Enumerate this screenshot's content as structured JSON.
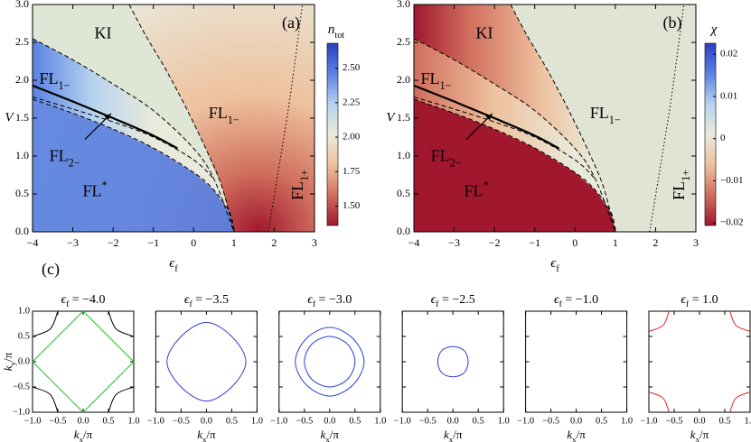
{
  "chart_data": [
    {
      "type": "heatmap",
      "panel_label": "(a)",
      "xlabel": {
        "main": "ϵ",
        "sub": "f"
      },
      "ylabel": "V",
      "xlim": [
        -4,
        3
      ],
      "ylim": [
        0,
        3
      ],
      "xticks": [
        {
          "value": -4,
          "label": "−4"
        },
        {
          "value": -3,
          "label": "−3"
        },
        {
          "value": -2,
          "label": "−2"
        },
        {
          "value": -1,
          "label": "−1"
        },
        0,
        1,
        2,
        3
      ],
      "yticks": [
        {
          "value": 0,
          "label": "0.0"
        },
        0.5,
        {
          "value": 1,
          "label": "1.0"
        },
        1.5,
        {
          "value": 2,
          "label": "2.0"
        },
        2.5,
        {
          "value": 3,
          "label": "3.0"
        }
      ],
      "colorbar": {
        "label": {
          "main": "n",
          "sub": "tot"
        },
        "lim": [
          1.36,
          2.68
        ],
        "ticks": [
          {
            "value": 2.5,
            "label": "2.50"
          },
          2.25,
          {
            "value": 2,
            "label": "2.00"
          },
          1.75,
          {
            "value": 1.5,
            "label": "1.50"
          }
        ],
        "colors": [
          "#a1172e",
          "#d06e5d",
          "#eec19e",
          "#e9eadb",
          "#b7d3ef",
          "#5a82e3",
          "#2c3fc4"
        ]
      },
      "regions": [
        {
          "main": "KI"
        },
        {
          "main": "FL",
          "sub": "1−"
        },
        {
          "main": "FL",
          "sub": "2−"
        },
        {
          "main": "FL",
          "sup": "*"
        },
        {
          "main": "FL",
          "sub": "1−"
        },
        {
          "main": "FL",
          "sub": "1+"
        }
      ],
      "lines": [
        {
          "style": "dashed",
          "x": [
            -4,
            -3,
            -2,
            -1,
            0,
            0.5,
            0.9,
            1
          ],
          "values": [
            1.75,
            1.565,
            1.356,
            1.107,
            0.783,
            0.553,
            0.247,
            0
          ]
        },
        {
          "style": "solid",
          "x": [
            -4,
            -3,
            -2,
            -1,
            -0.4
          ],
          "values": [
            1.93,
            1.72,
            1.5,
            1.27,
            1.1
          ]
        },
        {
          "style": "dashed",
          "x": [
            -4,
            -3,
            -2,
            -1,
            0,
            0.5
          ],
          "values": [
            1.78,
            1.62,
            1.45,
            1.25,
            0.95,
            0.7
          ]
        },
        {
          "style": "dashed",
          "x": [
            -4,
            -3,
            -2,
            -1,
            0,
            0.5,
            1
          ],
          "values": [
            2.55,
            2.27,
            1.95,
            1.6,
            1.1,
            0.7,
            0
          ]
        },
        {
          "style": "dashed",
          "x": [
            -1.6,
            -1.2,
            -0.7,
            -0.2,
            0.3,
            0.7,
            1
          ],
          "values": [
            3,
            2.6,
            2.15,
            1.65,
            1.1,
            0.6,
            0
          ]
        },
        {
          "style": "dotted",
          "x": [
            1.85,
            2.1,
            2.4,
            2.7
          ],
          "values": [
            0,
            0.8,
            1.8,
            3
          ]
        }
      ]
    },
    {
      "type": "heatmap",
      "panel_label": "(b)",
      "xlabel": {
        "main": "ϵ",
        "sub": "f"
      },
      "ylabel": "V",
      "xlim": [
        -4,
        3
      ],
      "ylim": [
        0,
        3
      ],
      "xticks": [
        {
          "value": -4,
          "label": "−4"
        },
        {
          "value": -3,
          "label": "−3"
        },
        {
          "value": -2,
          "label": "−2"
        },
        {
          "value": -1,
          "label": "−1"
        },
        0,
        1,
        2,
        3
      ],
      "yticks": [
        {
          "value": 0,
          "label": "0.0"
        },
        0.5,
        {
          "value": 1,
          "label": "1.0"
        },
        1.5,
        {
          "value": 2,
          "label": "2.0"
        },
        2.5,
        {
          "value": 3,
          "label": "3.0"
        }
      ],
      "colorbar": {
        "label": {
          "main": "χ"
        },
        "lim": [
          -0.0206,
          0.0226
        ],
        "ticks": [
          0.02,
          0.01,
          0,
          {
            "value": -0.01,
            "label": "−0.01"
          },
          {
            "value": -0.02,
            "label": "−0.02"
          }
        ],
        "colors": [
          "#a1172e",
          "#d06e5d",
          "#eec19e",
          "#e9eadb",
          "#b7d3ef",
          "#5a82e3",
          "#2c3fc4"
        ]
      },
      "regions": [
        {
          "main": "KI"
        },
        {
          "main": "FL",
          "sub": "1−"
        },
        {
          "main": "FL",
          "sub": "2−"
        },
        {
          "main": "FL",
          "sup": "*"
        },
        {
          "main": "FL",
          "sub": "1−"
        },
        {
          "main": "FL",
          "sub": "1+"
        }
      ],
      "lines": [
        {
          "style": "dashed",
          "x": [
            -4,
            -3,
            -2,
            -1,
            0,
            0.5,
            0.9,
            1
          ],
          "values": [
            1.75,
            1.565,
            1.356,
            1.107,
            0.783,
            0.553,
            0.247,
            0
          ]
        },
        {
          "style": "solid",
          "x": [
            -4,
            -3,
            -2,
            -1,
            -0.4
          ],
          "values": [
            1.93,
            1.72,
            1.5,
            1.27,
            1.1
          ]
        },
        {
          "style": "dashed",
          "x": [
            -4,
            -3,
            -2,
            -1,
            0,
            0.5
          ],
          "values": [
            1.78,
            1.62,
            1.45,
            1.25,
            0.95,
            0.7
          ]
        },
        {
          "style": "dashed",
          "x": [
            -4,
            -3,
            -2,
            -1,
            0,
            0.5,
            1
          ],
          "values": [
            2.55,
            2.27,
            1.95,
            1.6,
            1.1,
            0.7,
            0
          ]
        },
        {
          "style": "dashed",
          "x": [
            -1.6,
            -1.2,
            -0.7,
            -0.2,
            0.3,
            0.7,
            1
          ],
          "values": [
            3,
            2.6,
            2.15,
            1.65,
            1.1,
            0.6,
            0
          ]
        },
        {
          "style": "dotted",
          "x": [
            1.85,
            2.1,
            2.4,
            2.7
          ],
          "values": [
            0,
            0.8,
            1.8,
            3
          ]
        }
      ]
    },
    {
      "type": "contour",
      "panel_label": "(c)",
      "title": {
        "main": "ϵ",
        "sub": "f",
        "rest": " = −4.0"
      },
      "xlabel": {
        "main": "k",
        "sub": "x",
        "rest": "/π"
      },
      "ylabel": {
        "main": "k",
        "sub": "y",
        "rest": "/π"
      },
      "xlim": [
        -1,
        1
      ],
      "ylim": [
        -1,
        1
      ],
      "xticks": [
        {
          "value": -1,
          "label": "−1.0"
        },
        {
          "value": -0.5,
          "label": "−0.5"
        },
        {
          "value": 0,
          "label": "0.0"
        },
        0.5,
        {
          "value": 1,
          "label": "1.0"
        }
      ],
      "yticks": [
        {
          "value": -1,
          "label": "−1.0"
        },
        {
          "value": -0.5,
          "label": "−0.5"
        },
        {
          "value": 0,
          "label": "0.0"
        },
        0.5,
        {
          "value": 1,
          "label": "1.0"
        }
      ],
      "contours": [
        {
          "color": "#000000",
          "closed": false,
          "smooth": true,
          "x": [
            -0.5,
            -0.65,
            -1
          ],
          "values": [
            1,
            0.65,
            0.5
          ]
        },
        {
          "color": "#000000",
          "closed": false,
          "smooth": true,
          "x": [
            0.5,
            0.65,
            1
          ],
          "values": [
            1,
            0.65,
            0.5
          ]
        },
        {
          "color": "#000000",
          "closed": false,
          "smooth": true,
          "x": [
            -0.5,
            -0.65,
            -1
          ],
          "values": [
            -1,
            -0.65,
            -0.5
          ]
        },
        {
          "color": "#000000",
          "closed": false,
          "smooth": true,
          "x": [
            0.5,
            0.65,
            1
          ],
          "values": [
            -1,
            -0.65,
            -0.5
          ]
        },
        {
          "color": "#22c422",
          "closed": true,
          "smooth": false,
          "x": [
            0,
            1,
            0,
            -1
          ],
          "values": [
            1,
            0,
            -1,
            0
          ]
        }
      ]
    },
    {
      "type": "contour",
      "title": {
        "main": "ϵ",
        "sub": "f",
        "rest": " = −3.5"
      },
      "xlabel": {
        "main": "k",
        "sub": "x",
        "rest": "/π"
      },
      "xlim": [
        -1,
        1
      ],
      "ylim": [
        -1,
        1
      ],
      "xticks": [
        {
          "value": -1,
          "label": "−1.0"
        },
        {
          "value": -0.5,
          "label": "−0.5"
        },
        {
          "value": 0,
          "label": "0.0"
        },
        0.5,
        {
          "value": 1,
          "label": "1.0"
        }
      ],
      "yticks": [
        -1,
        -0.5,
        0,
        0.5,
        1
      ],
      "contours": [
        {
          "color": "#2b3fd6",
          "closed": true,
          "smooth": true,
          "x": [
            0,
            0.5,
            0.78,
            0.5,
            0,
            -0.5,
            -0.78,
            -0.5
          ],
          "values": [
            0.78,
            0.5,
            0,
            -0.5,
            -0.78,
            -0.5,
            0,
            0.5
          ]
        }
      ]
    },
    {
      "type": "contour",
      "title": {
        "main": "ϵ",
        "sub": "f",
        "rest": " = −3.0"
      },
      "xlabel": {
        "main": "k",
        "sub": "x",
        "rest": "/π"
      },
      "xlim": [
        -1,
        1
      ],
      "ylim": [
        -1,
        1
      ],
      "xticks": [
        {
          "value": -1,
          "label": "−1.0"
        },
        {
          "value": -0.5,
          "label": "−0.5"
        },
        {
          "value": 0,
          "label": "0.0"
        },
        0.5,
        {
          "value": 1,
          "label": "1.0"
        }
      ],
      "yticks": [
        -1,
        -0.5,
        0,
        0.5,
        1
      ],
      "contours": [
        {
          "color": "#2b3fd6",
          "closed": true,
          "smooth": true,
          "x": [
            0,
            0.46,
            0.68,
            0.46,
            0,
            -0.46,
            -0.68,
            -0.46
          ],
          "values": [
            0.68,
            0.46,
            0,
            -0.46,
            -0.68,
            -0.46,
            0,
            0.46
          ]
        },
        {
          "color": "#2b3fd6",
          "closed": true,
          "smooth": true,
          "x": [
            0,
            0.35,
            0.5,
            0.35,
            0,
            -0.35,
            -0.5,
            -0.35
          ],
          "values": [
            0.5,
            0.35,
            0,
            -0.35,
            -0.5,
            -0.35,
            0,
            0.35
          ]
        }
      ]
    },
    {
      "type": "contour",
      "title": {
        "main": "ϵ",
        "sub": "f",
        "rest": " = −2.5"
      },
      "xlabel": {
        "main": "k",
        "sub": "x",
        "rest": "/π"
      },
      "xlim": [
        -1,
        1
      ],
      "ylim": [
        -1,
        1
      ],
      "xticks": [
        {
          "value": -1,
          "label": "−1.0"
        },
        {
          "value": -0.5,
          "label": "−0.5"
        },
        {
          "value": 0,
          "label": "0.0"
        },
        0.5,
        {
          "value": 1,
          "label": "1.0"
        }
      ],
      "yticks": [
        -1,
        -0.5,
        0,
        0.5,
        1
      ],
      "contours": [
        {
          "color": "#2b3fd6",
          "closed": true,
          "smooth": true,
          "x": [
            0,
            0.22,
            0.3,
            0.22,
            0,
            -0.22,
            -0.3,
            -0.22
          ],
          "values": [
            0.3,
            0.22,
            0,
            -0.22,
            -0.3,
            -0.22,
            0,
            0.22
          ]
        }
      ]
    },
    {
      "type": "contour",
      "title": {
        "main": "ϵ",
        "sub": "f",
        "rest": " = −1.0"
      },
      "xlabel": {
        "main": "k",
        "sub": "x",
        "rest": "/π"
      },
      "xlim": [
        -1,
        1
      ],
      "ylim": [
        -1,
        1
      ],
      "xticks": [
        {
          "value": -1,
          "label": "−1.0"
        },
        {
          "value": -0.5,
          "label": "−0.5"
        },
        {
          "value": 0,
          "label": "0.0"
        },
        0.5,
        {
          "value": 1,
          "label": "1.0"
        }
      ],
      "yticks": [
        -1,
        -0.5,
        0,
        0.5,
        1
      ],
      "contours": []
    },
    {
      "type": "contour",
      "title": {
        "main": "ϵ",
        "sub": "f",
        "rest": " = 1.0"
      },
      "xlabel": {
        "main": "k",
        "sub": "x",
        "rest": "/π"
      },
      "xlim": [
        -1,
        1
      ],
      "ylim": [
        -1,
        1
      ],
      "xticks": [
        {
          "value": -1,
          "label": "−1.0"
        },
        {
          "value": -0.5,
          "label": "−0.5"
        },
        {
          "value": 0,
          "label": "0.0"
        },
        0.5,
        {
          "value": 1,
          "label": "1.0"
        }
      ],
      "yticks": [
        -1,
        -0.5,
        0,
        0.5,
        1
      ],
      "contours": [
        {
          "color": "#e02020",
          "closed": false,
          "smooth": true,
          "x": [
            -0.6,
            -0.72,
            -1
          ],
          "values": [
            1,
            0.72,
            0.6
          ]
        },
        {
          "color": "#e02020",
          "closed": false,
          "smooth": true,
          "x": [
            0.6,
            0.72,
            1
          ],
          "values": [
            1,
            0.72,
            0.6
          ]
        },
        {
          "color": "#e02020",
          "closed": false,
          "smooth": true,
          "x": [
            -0.6,
            -0.72,
            -1
          ],
          "values": [
            -1,
            -0.72,
            -0.6
          ]
        },
        {
          "color": "#e02020",
          "closed": false,
          "smooth": true,
          "x": [
            0.6,
            0.72,
            1
          ],
          "values": [
            -1,
            -0.72,
            -0.6
          ]
        }
      ]
    }
  ]
}
